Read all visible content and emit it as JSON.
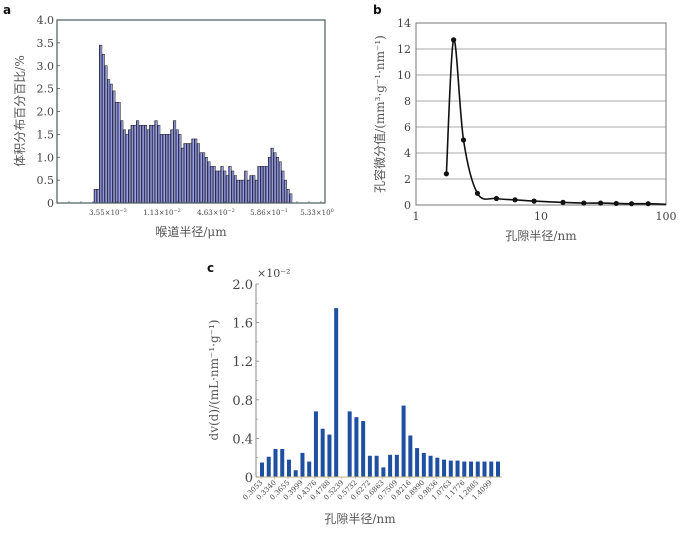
{
  "chart_data": [
    {
      "panel": "a",
      "type": "bar",
      "xlabel": "喉道半径/μm",
      "ylabel": "体积分布百分百比/%",
      "ylim": [
        0,
        4.0
      ],
      "yticks": [
        "0",
        "0.5",
        "1.0",
        "1.5",
        "2.0",
        "2.5",
        "3.0",
        "3.5",
        "4.0"
      ],
      "ytick_values": [
        0,
        0.5,
        1.0,
        1.5,
        2.0,
        2.5,
        3.0,
        3.5,
        4.0
      ],
      "xticks": [
        {
          "mant": "3.55×10",
          "exp": "−3"
        },
        {
          "mant": "1.13×10",
          "exp": "−2"
        },
        {
          "mant": "4.63×10",
          "exp": "−2"
        },
        {
          "mant": "5.86×10",
          "exp": "−1"
        },
        {
          "mant": "5.33×10",
          "exp": "0"
        }
      ],
      "values": [
        0.3,
        0.3,
        3.45,
        3.25,
        3.0,
        2.7,
        2.6,
        2.45,
        2.2,
        2.2,
        1.8,
        1.6,
        1.5,
        1.6,
        1.7,
        1.7,
        1.8,
        1.7,
        1.7,
        1.7,
        1.6,
        1.7,
        1.7,
        1.8,
        1.7,
        1.5,
        1.5,
        1.5,
        1.5,
        1.6,
        1.8,
        1.6,
        1.5,
        1.2,
        1.3,
        1.3,
        1.3,
        1.4,
        1.4,
        1.3,
        1.1,
        1.1,
        1.0,
        0.9,
        0.8,
        0.8,
        0.7,
        0.7,
        0.8,
        0.7,
        0.6,
        0.8,
        0.7,
        0.6,
        0.5,
        0.5,
        0.5,
        0.7,
        0.5,
        0.6,
        0.6,
        0.5,
        0.8,
        0.8,
        0.8,
        0.8,
        1.0,
        1.2,
        1.1,
        1.0,
        0.9,
        0.7,
        0.5,
        0.3,
        0.2
      ],
      "bar_color": "#3a3f9a"
    },
    {
      "panel": "b",
      "type": "line",
      "xlabel": "孔隙半径/nm",
      "ylabel": "孔容微分值/(mm³·g⁻¹·nm⁻¹)",
      "xscale": "log",
      "xlim": [
        1,
        100
      ],
      "ylim": [
        0,
        14
      ],
      "xticks": [
        "1",
        "10",
        "100"
      ],
      "xtick_values": [
        1,
        10,
        100
      ],
      "yticks": [
        "0",
        "2",
        "4",
        "6",
        "8",
        "10",
        "12",
        "14"
      ],
      "ytick_values": [
        0,
        2,
        4,
        6,
        8,
        10,
        12,
        14
      ],
      "grid": "horizontal",
      "x": [
        1.75,
        2.0,
        2.4,
        3.1,
        4.4,
        6.2,
        8.8,
        15,
        22,
        30,
        40,
        53,
        72
      ],
      "y": [
        2.4,
        12.7,
        5.0,
        0.9,
        0.5,
        0.4,
        0.3,
        0.2,
        0.15,
        0.15,
        0.12,
        0.1,
        0.1
      ],
      "line_color": "#111111"
    },
    {
      "panel": "c",
      "type": "bar",
      "xlabel": "孔隙半径/nm",
      "ylabel": "dv(d)/(mL·nm⁻¹·g⁻¹)",
      "multiplier": "×10⁻²",
      "ylim": [
        0,
        2.0
      ],
      "yticks": [
        "0",
        "0.4",
        "0.8",
        "1.2",
        "1.6",
        "2.0"
      ],
      "ytick_values": [
        0,
        0.4,
        0.8,
        1.2,
        1.6,
        2.0
      ],
      "xticks": [
        "0.3053",
        "0.3340",
        "0.3655",
        "0.3999",
        "0.4376",
        "0.4788",
        "0.5239",
        "0.5732",
        "0.6272",
        "0.6863",
        "0.7509",
        "0.8216",
        "0.8990",
        "0.9836",
        "1.0763",
        "1.1776",
        "1.2885",
        "1.4099"
      ],
      "values": [
        0.15,
        0.21,
        0.29,
        0.29,
        0.18,
        0.07,
        0.25,
        0.16,
        0.68,
        0.5,
        0.44,
        1.75,
        0,
        0.68,
        0.62,
        0.58,
        0.22,
        0.22,
        0.1,
        0.23,
        0.23,
        0.74,
        0.43,
        0.3,
        0.25,
        0.22,
        0.2,
        0.18,
        0.17,
        0.17,
        0.16,
        0.16,
        0.16,
        0.16,
        0.16,
        0.16
      ],
      "bar_color": "#1f4fa0"
    }
  ]
}
